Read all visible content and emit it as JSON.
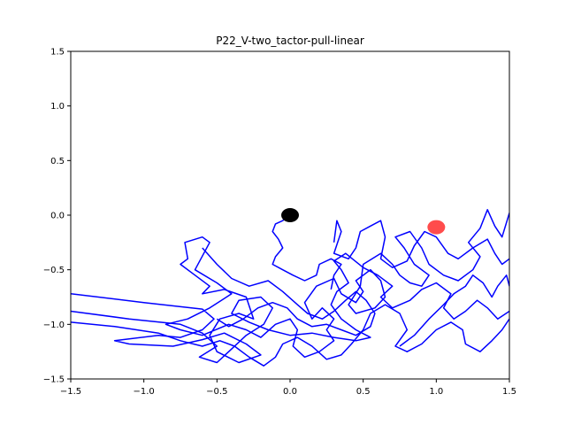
{
  "chart_data": {
    "type": "line",
    "title": "P22_V-two_tactor-pull-linear",
    "xlabel": "",
    "ylabel": "",
    "xlim": [
      -1.5,
      1.5
    ],
    "ylim": [
      -1.5,
      1.5
    ],
    "x_ticks": [
      "−1.5",
      "−1.0",
      "−0.5",
      "0.0",
      "0.5",
      "1.0",
      "1.5"
    ],
    "y_ticks": [
      "1.5",
      "1.0",
      "0.5",
      "0.0",
      "−0.5",
      "−1.0",
      "−1.5"
    ],
    "grid": false,
    "colors": {
      "trajectory": "#0000ff",
      "start": "#000000",
      "target": "#ff0000"
    },
    "markers": [
      {
        "kind": "start",
        "x": 0.0,
        "y": 0.0
      },
      {
        "kind": "target",
        "x": 1.0,
        "y": -0.11
      }
    ],
    "series": [
      {
        "values": [
          [
            -1.5,
            -0.72
          ],
          [
            -1.0,
            -0.8
          ],
          [
            -0.6,
            -0.86
          ],
          [
            -0.52,
            -0.95
          ],
          [
            -0.6,
            -1.05
          ],
          [
            -0.75,
            -1.12
          ],
          [
            -0.9,
            -1.1
          ],
          [
            -1.2,
            -1.15
          ],
          [
            -1.1,
            -1.18
          ],
          [
            -0.8,
            -1.2
          ],
          [
            -0.6,
            -1.14
          ],
          [
            -0.45,
            -1.08
          ],
          [
            -0.3,
            -1.18
          ],
          [
            -0.2,
            -1.28
          ],
          [
            -0.35,
            -1.35
          ],
          [
            -0.5,
            -1.25
          ],
          [
            -0.55,
            -1.1
          ],
          [
            -0.48,
            -0.95
          ],
          [
            -0.35,
            -0.9
          ],
          [
            -0.25,
            -0.95
          ],
          [
            -0.3,
            -0.75
          ],
          [
            -0.45,
            -0.68
          ],
          [
            -0.6,
            -0.72
          ],
          [
            -0.55,
            -0.65
          ],
          [
            -0.65,
            -0.55
          ],
          [
            -0.75,
            -0.45
          ],
          [
            -0.7,
            -0.4
          ],
          [
            -0.72,
            -0.25
          ],
          [
            -0.6,
            -0.2
          ],
          [
            -0.55,
            -0.25
          ],
          [
            -0.65,
            -0.5
          ],
          [
            -0.5,
            -0.62
          ],
          [
            -0.4,
            -0.72
          ],
          [
            -0.55,
            -0.85
          ],
          [
            -0.7,
            -0.95
          ],
          [
            -0.85,
            -1.0
          ],
          [
            -0.75,
            -1.05
          ],
          [
            -0.6,
            -1.1
          ],
          [
            -0.42,
            -1.0
          ],
          [
            -0.3,
            -1.05
          ],
          [
            -0.2,
            -1.12
          ],
          [
            -0.1,
            -1.0
          ],
          [
            0.0,
            -0.95
          ],
          [
            0.05,
            -1.05
          ],
          [
            0.02,
            -1.2
          ],
          [
            0.1,
            -1.3
          ],
          [
            0.2,
            -1.25
          ],
          [
            0.3,
            -1.15
          ],
          [
            0.25,
            -1.05
          ],
          [
            0.3,
            -0.95
          ],
          [
            0.22,
            -0.85
          ],
          [
            0.15,
            -0.95
          ],
          [
            0.1,
            -0.8
          ],
          [
            0.18,
            -0.65
          ],
          [
            0.3,
            -0.58
          ],
          [
            0.35,
            -0.72
          ],
          [
            0.45,
            -0.8
          ],
          [
            0.5,
            -0.7
          ],
          [
            0.45,
            -0.6
          ],
          [
            0.55,
            -0.5
          ],
          [
            0.62,
            -0.6
          ],
          [
            0.65,
            -0.75
          ],
          [
            0.58,
            -0.85
          ],
          [
            0.45,
            -0.9
          ],
          [
            0.4,
            -0.82
          ],
          [
            0.48,
            -0.65
          ],
          [
            0.5,
            -0.45
          ],
          [
            0.62,
            -0.35
          ],
          [
            0.7,
            -0.45
          ],
          [
            0.75,
            -0.55
          ],
          [
            0.82,
            -0.62
          ],
          [
            0.9,
            -0.65
          ],
          [
            0.95,
            -0.55
          ],
          [
            0.85,
            -0.45
          ],
          [
            0.78,
            -0.3
          ],
          [
            0.72,
            -0.2
          ],
          [
            0.82,
            -0.15
          ],
          [
            0.9,
            -0.3
          ],
          [
            0.95,
            -0.45
          ],
          [
            1.05,
            -0.55
          ],
          [
            1.15,
            -0.6
          ],
          [
            1.25,
            -0.5
          ],
          [
            1.3,
            -0.38
          ],
          [
            1.22,
            -0.25
          ],
          [
            1.3,
            -0.12
          ],
          [
            1.35,
            0.05
          ],
          [
            1.4,
            -0.1
          ],
          [
            1.45,
            -0.2
          ],
          [
            1.5,
            0.02
          ]
        ]
      },
      {
        "values": [
          [
            -1.5,
            -0.88
          ],
          [
            -1.1,
            -0.95
          ],
          [
            -0.75,
            -1.0
          ],
          [
            -0.6,
            -1.08
          ],
          [
            -0.5,
            -1.2
          ],
          [
            -0.62,
            -1.3
          ],
          [
            -0.5,
            -1.35
          ],
          [
            -0.42,
            -1.25
          ],
          [
            -0.3,
            -1.1
          ],
          [
            -0.18,
            -1.0
          ],
          [
            -0.12,
            -0.85
          ],
          [
            -0.2,
            -0.75
          ],
          [
            -0.35,
            -0.78
          ],
          [
            -0.4,
            -0.9
          ],
          [
            -0.28,
            -0.98
          ],
          [
            -0.15,
            -1.05
          ],
          [
            0.0,
            -1.1
          ],
          [
            0.15,
            -1.08
          ],
          [
            0.3,
            -1.12
          ],
          [
            0.45,
            -1.15
          ],
          [
            0.55,
            -1.12
          ],
          [
            0.45,
            -1.05
          ],
          [
            0.35,
            -0.95
          ],
          [
            0.28,
            -0.82
          ],
          [
            0.32,
            -0.7
          ],
          [
            0.4,
            -0.62
          ],
          [
            0.35,
            -0.5
          ],
          [
            0.3,
            -0.42
          ],
          [
            0.38,
            -0.35
          ],
          [
            0.5,
            -0.48
          ],
          [
            0.6,
            -0.55
          ],
          [
            0.7,
            -0.65
          ],
          [
            0.62,
            -0.75
          ],
          [
            0.7,
            -0.85
          ],
          [
            0.82,
            -0.78
          ],
          [
            0.9,
            -0.68
          ],
          [
            1.0,
            -0.62
          ],
          [
            1.1,
            -0.72
          ],
          [
            1.05,
            -0.85
          ],
          [
            1.12,
            -0.95
          ],
          [
            1.2,
            -0.88
          ],
          [
            1.28,
            -0.78
          ],
          [
            1.35,
            -0.85
          ],
          [
            1.42,
            -0.95
          ],
          [
            1.5,
            -0.88
          ]
        ]
      },
      {
        "values": [
          [
            -1.5,
            -0.98
          ],
          [
            -1.2,
            -1.02
          ],
          [
            -0.9,
            -1.08
          ],
          [
            -0.75,
            -1.15
          ],
          [
            -0.6,
            -1.2
          ],
          [
            -0.48,
            -1.15
          ],
          [
            -0.38,
            -1.2
          ],
          [
            -0.28,
            -1.3
          ],
          [
            -0.18,
            -1.38
          ],
          [
            -0.1,
            -1.3
          ],
          [
            -0.05,
            -1.18
          ],
          [
            0.05,
            -1.12
          ],
          [
            0.15,
            -1.2
          ],
          [
            0.25,
            -1.32
          ],
          [
            0.35,
            -1.28
          ],
          [
            0.42,
            -1.18
          ],
          [
            0.5,
            -1.05
          ],
          [
            0.55,
            -0.9
          ],
          [
            0.65,
            -0.82
          ],
          [
            0.75,
            -0.9
          ],
          [
            0.8,
            -1.05
          ],
          [
            0.72,
            -1.2
          ],
          [
            0.8,
            -1.25
          ],
          [
            0.9,
            -1.18
          ],
          [
            1.0,
            -1.05
          ],
          [
            1.1,
            -0.98
          ],
          [
            1.18,
            -1.05
          ],
          [
            1.2,
            -1.18
          ],
          [
            1.3,
            -1.25
          ],
          [
            1.38,
            -1.15
          ],
          [
            1.45,
            -1.05
          ],
          [
            1.5,
            -0.95
          ]
        ]
      },
      {
        "values": [
          [
            0.0,
            0.0
          ],
          [
            -0.05,
            -0.05
          ],
          [
            -0.1,
            -0.08
          ],
          [
            -0.12,
            -0.15
          ],
          [
            -0.08,
            -0.22
          ],
          [
            -0.05,
            -0.3
          ],
          [
            -0.1,
            -0.38
          ],
          [
            -0.12,
            -0.45
          ],
          [
            -0.05,
            -0.5
          ],
          [
            0.02,
            -0.55
          ],
          [
            0.1,
            -0.6
          ],
          [
            0.18,
            -0.55
          ],
          [
            0.2,
            -0.45
          ],
          [
            0.28,
            -0.4
          ],
          [
            0.35,
            -0.45
          ],
          [
            0.3,
            -0.55
          ],
          [
            0.28,
            -0.68
          ]
        ]
      },
      {
        "values": [
          [
            0.3,
            -0.25
          ],
          [
            0.32,
            -0.05
          ],
          [
            0.35,
            -0.15
          ],
          [
            0.3,
            -0.35
          ],
          [
            0.4,
            -0.4
          ],
          [
            0.45,
            -0.3
          ],
          [
            0.48,
            -0.15
          ],
          [
            0.55,
            -0.1
          ],
          [
            0.62,
            -0.05
          ],
          [
            0.65,
            -0.2
          ],
          [
            0.62,
            -0.4
          ],
          [
            0.7,
            -0.48
          ],
          [
            0.8,
            -0.42
          ],
          [
            0.85,
            -0.28
          ],
          [
            0.92,
            -0.15
          ],
          [
            1.0,
            -0.2
          ],
          [
            1.08,
            -0.35
          ],
          [
            1.15,
            -0.4
          ],
          [
            1.25,
            -0.3
          ],
          [
            1.35,
            -0.22
          ],
          [
            1.4,
            -0.35
          ],
          [
            1.45,
            -0.45
          ],
          [
            1.5,
            -0.4
          ]
        ]
      },
      {
        "values": [
          [
            0.75,
            -1.2
          ],
          [
            0.85,
            -1.1
          ],
          [
            0.95,
            -0.95
          ],
          [
            1.05,
            -0.82
          ],
          [
            1.12,
            -0.72
          ],
          [
            1.2,
            -0.65
          ],
          [
            1.25,
            -0.55
          ],
          [
            1.32,
            -0.62
          ],
          [
            1.38,
            -0.75
          ],
          [
            1.42,
            -0.65
          ],
          [
            1.48,
            -0.55
          ],
          [
            1.5,
            -0.65
          ]
        ]
      },
      {
        "values": [
          [
            -0.6,
            -0.3
          ],
          [
            -0.5,
            -0.45
          ],
          [
            -0.4,
            -0.58
          ],
          [
            -0.28,
            -0.65
          ],
          [
            -0.15,
            -0.6
          ],
          [
            -0.05,
            -0.7
          ],
          [
            0.05,
            -0.82
          ],
          [
            0.12,
            -0.9
          ],
          [
            0.22,
            -0.95
          ],
          [
            0.3,
            -0.88
          ],
          [
            0.38,
            -0.78
          ],
          [
            0.45,
            -0.7
          ],
          [
            0.52,
            -0.78
          ],
          [
            0.58,
            -0.9
          ],
          [
            0.55,
            -1.02
          ],
          [
            0.45,
            -1.1
          ],
          [
            0.35,
            -1.05
          ],
          [
            0.25,
            -1.0
          ],
          [
            0.15,
            -1.02
          ],
          [
            0.05,
            -0.95
          ],
          [
            -0.02,
            -0.85
          ],
          [
            -0.12,
            -0.8
          ],
          [
            -0.22,
            -0.85
          ],
          [
            -0.32,
            -0.95
          ],
          [
            -0.42,
            -1.02
          ],
          [
            -0.5,
            -0.95
          ]
        ]
      }
    ]
  }
}
